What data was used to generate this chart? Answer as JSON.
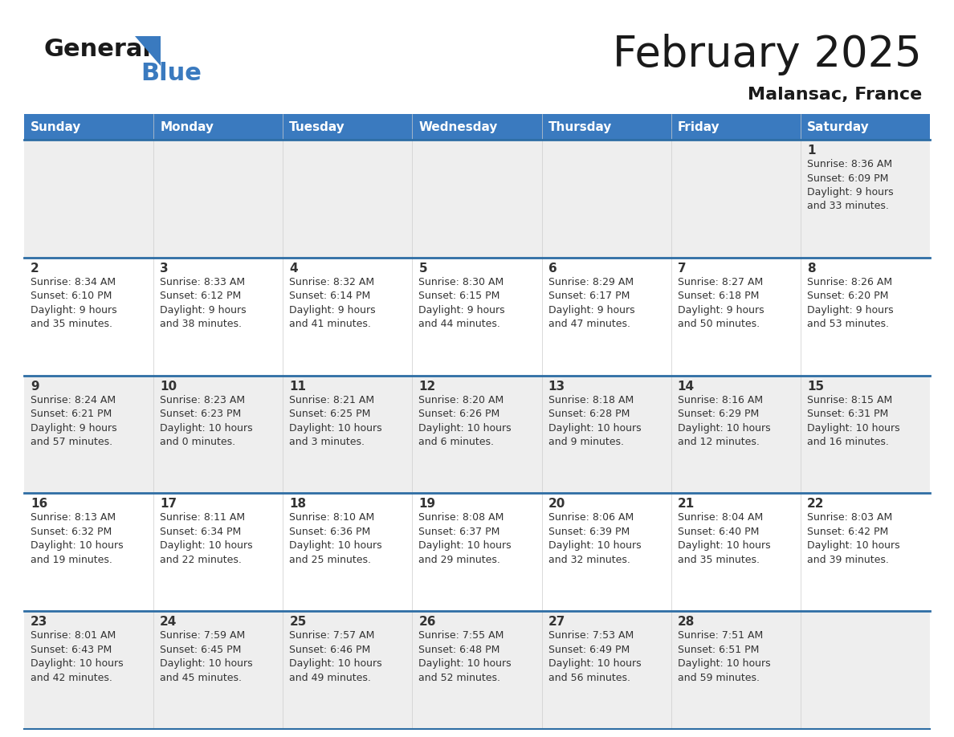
{
  "title": "February 2025",
  "subtitle": "Malansac, France",
  "header_bg_color": "#3a7abf",
  "header_text_color": "#ffffff",
  "cell_bg_light": "#eeeeee",
  "cell_bg_white": "#ffffff",
  "cell_border_color": "#2e6da4",
  "text_color": "#333333",
  "day_headers": [
    "Sunday",
    "Monday",
    "Tuesday",
    "Wednesday",
    "Thursday",
    "Friday",
    "Saturday"
  ],
  "calendar_data": [
    [
      null,
      null,
      null,
      null,
      null,
      null,
      {
        "day": 1,
        "sunrise": "8:36 AM",
        "sunset": "6:09 PM",
        "daylight": "9 hours\nand 33 minutes."
      }
    ],
    [
      {
        "day": 2,
        "sunrise": "8:34 AM",
        "sunset": "6:10 PM",
        "daylight": "9 hours\nand 35 minutes."
      },
      {
        "day": 3,
        "sunrise": "8:33 AM",
        "sunset": "6:12 PM",
        "daylight": "9 hours\nand 38 minutes."
      },
      {
        "day": 4,
        "sunrise": "8:32 AM",
        "sunset": "6:14 PM",
        "daylight": "9 hours\nand 41 minutes."
      },
      {
        "day": 5,
        "sunrise": "8:30 AM",
        "sunset": "6:15 PM",
        "daylight": "9 hours\nand 44 minutes."
      },
      {
        "day": 6,
        "sunrise": "8:29 AM",
        "sunset": "6:17 PM",
        "daylight": "9 hours\nand 47 minutes."
      },
      {
        "day": 7,
        "sunrise": "8:27 AM",
        "sunset": "6:18 PM",
        "daylight": "9 hours\nand 50 minutes."
      },
      {
        "day": 8,
        "sunrise": "8:26 AM",
        "sunset": "6:20 PM",
        "daylight": "9 hours\nand 53 minutes."
      }
    ],
    [
      {
        "day": 9,
        "sunrise": "8:24 AM",
        "sunset": "6:21 PM",
        "daylight": "9 hours\nand 57 minutes."
      },
      {
        "day": 10,
        "sunrise": "8:23 AM",
        "sunset": "6:23 PM",
        "daylight": "10 hours\nand 0 minutes."
      },
      {
        "day": 11,
        "sunrise": "8:21 AM",
        "sunset": "6:25 PM",
        "daylight": "10 hours\nand 3 minutes."
      },
      {
        "day": 12,
        "sunrise": "8:20 AM",
        "sunset": "6:26 PM",
        "daylight": "10 hours\nand 6 minutes."
      },
      {
        "day": 13,
        "sunrise": "8:18 AM",
        "sunset": "6:28 PM",
        "daylight": "10 hours\nand 9 minutes."
      },
      {
        "day": 14,
        "sunrise": "8:16 AM",
        "sunset": "6:29 PM",
        "daylight": "10 hours\nand 12 minutes."
      },
      {
        "day": 15,
        "sunrise": "8:15 AM",
        "sunset": "6:31 PM",
        "daylight": "10 hours\nand 16 minutes."
      }
    ],
    [
      {
        "day": 16,
        "sunrise": "8:13 AM",
        "sunset": "6:32 PM",
        "daylight": "10 hours\nand 19 minutes."
      },
      {
        "day": 17,
        "sunrise": "8:11 AM",
        "sunset": "6:34 PM",
        "daylight": "10 hours\nand 22 minutes."
      },
      {
        "day": 18,
        "sunrise": "8:10 AM",
        "sunset": "6:36 PM",
        "daylight": "10 hours\nand 25 minutes."
      },
      {
        "day": 19,
        "sunrise": "8:08 AM",
        "sunset": "6:37 PM",
        "daylight": "10 hours\nand 29 minutes."
      },
      {
        "day": 20,
        "sunrise": "8:06 AM",
        "sunset": "6:39 PM",
        "daylight": "10 hours\nand 32 minutes."
      },
      {
        "day": 21,
        "sunrise": "8:04 AM",
        "sunset": "6:40 PM",
        "daylight": "10 hours\nand 35 minutes."
      },
      {
        "day": 22,
        "sunrise": "8:03 AM",
        "sunset": "6:42 PM",
        "daylight": "10 hours\nand 39 minutes."
      }
    ],
    [
      {
        "day": 23,
        "sunrise": "8:01 AM",
        "sunset": "6:43 PM",
        "daylight": "10 hours\nand 42 minutes."
      },
      {
        "day": 24,
        "sunrise": "7:59 AM",
        "sunset": "6:45 PM",
        "daylight": "10 hours\nand 45 minutes."
      },
      {
        "day": 25,
        "sunrise": "7:57 AM",
        "sunset": "6:46 PM",
        "daylight": "10 hours\nand 49 minutes."
      },
      {
        "day": 26,
        "sunrise": "7:55 AM",
        "sunset": "6:48 PM",
        "daylight": "10 hours\nand 52 minutes."
      },
      {
        "day": 27,
        "sunrise": "7:53 AM",
        "sunset": "6:49 PM",
        "daylight": "10 hours\nand 56 minutes."
      },
      {
        "day": 28,
        "sunrise": "7:51 AM",
        "sunset": "6:51 PM",
        "daylight": "10 hours\nand 59 minutes."
      },
      null
    ]
  ],
  "logo_color_general": "#1a1a1a",
  "logo_color_blue": "#3a7abf"
}
